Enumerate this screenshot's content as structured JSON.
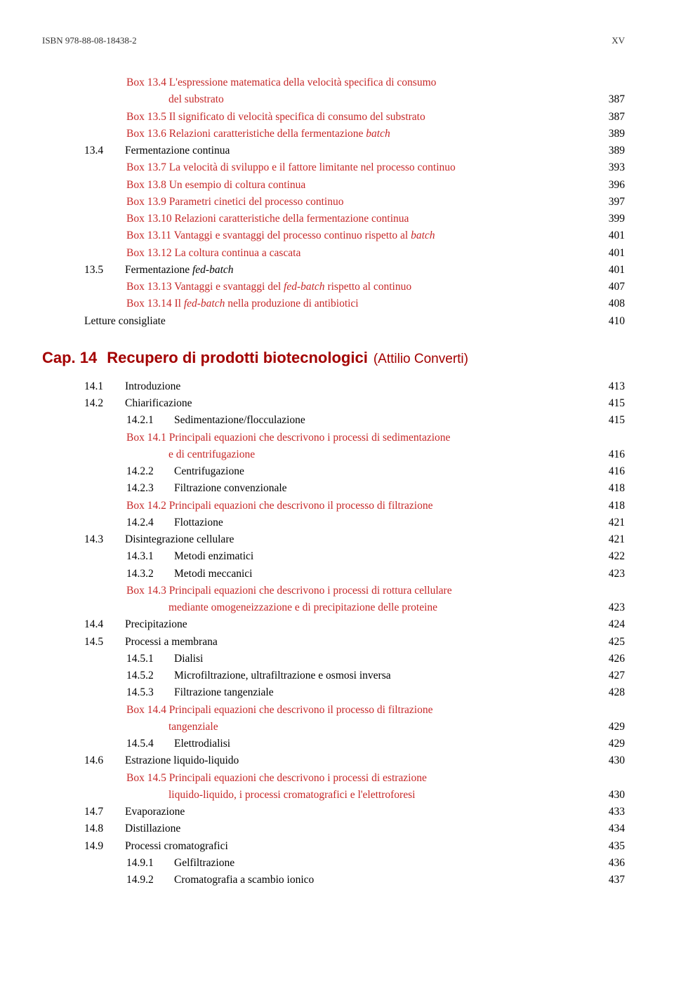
{
  "header": {
    "isbn": "ISBN 978-88-08-18438-2",
    "roman": "XV"
  },
  "toc13": [
    {
      "type": "box-cont",
      "label": "Box 13.4 L'espressione matematica della velocità specifica di consumo",
      "page": ""
    },
    {
      "type": "box-cont-2",
      "label": "del substrato",
      "page": "387"
    },
    {
      "type": "box",
      "label": "Box 13.5 Il significato di velocità specifica di consumo del substrato",
      "page": "387"
    },
    {
      "type": "box",
      "label": "Box 13.6 Relazioni caratteristiche della fermentazione",
      "italic": "batch",
      "page": "389"
    },
    {
      "type": "sec",
      "num": "13.4",
      "label": "Fermentazione continua",
      "page": "389"
    },
    {
      "type": "box",
      "label": "Box 13.7 La velocità di sviluppo e il fattore limitante nel processo continuo",
      "page": "393"
    },
    {
      "type": "box",
      "label": "Box 13.8 Un esempio di coltura continua",
      "page": "396"
    },
    {
      "type": "box",
      "label": "Box 13.9 Parametri cinetici del processo continuo",
      "page": "397"
    },
    {
      "type": "box",
      "label": "Box 13.10 Relazioni caratteristiche della fermentazione continua",
      "page": "399"
    },
    {
      "type": "box",
      "label": "Box 13.11 Vantaggi e svantaggi del processo continuo rispetto al",
      "italic": "batch",
      "page": "401"
    },
    {
      "type": "box",
      "label": "Box 13.12 La coltura continua a cascata",
      "page": "401"
    },
    {
      "type": "sec",
      "num": "13.5",
      "label_pre": "Fermentazione",
      "italic": "fed-batch",
      "page": "401"
    },
    {
      "type": "box",
      "label": "Box 13.13 Vantaggi e svantaggi del",
      "italic": "fed-batch",
      "label_post": "rispetto al continuo",
      "page": "407"
    },
    {
      "type": "box",
      "label": "Box 13.14 Il",
      "italic": "fed-batch",
      "label_post": "nella produzione di antibiotici",
      "page": "408"
    },
    {
      "type": "sec",
      "num": "",
      "label": "Letture consigliate",
      "page": "410",
      "letture": true
    }
  ],
  "chapter14": {
    "prefix": "Cap. 14",
    "title": "Recupero di prodotti biotecnologici",
    "author": "(Attilio Converti)"
  },
  "toc14": [
    {
      "type": "sec",
      "num": "14.1",
      "label": "Introduzione",
      "page": "413"
    },
    {
      "type": "sec",
      "num": "14.2",
      "label": "Chiarificazione",
      "page": "415"
    },
    {
      "type": "sub",
      "num": "14.2.1",
      "label": "Sedimentazione/flocculazione",
      "page": "415"
    },
    {
      "type": "box",
      "label": "Box 14.1 Principali equazioni che descrivono i processi di sedimentazione",
      "page": ""
    },
    {
      "type": "box-cont-2",
      "label": "e di centrifugazione",
      "page": "416"
    },
    {
      "type": "sub",
      "num": "14.2.2",
      "label": "Centrifugazione",
      "page": "416"
    },
    {
      "type": "sub",
      "num": "14.2.3",
      "label": "Filtrazione convenzionale",
      "page": "418"
    },
    {
      "type": "box",
      "label": "Box 14.2 Principali equazioni che descrivono il processo di filtrazione",
      "page": "418"
    },
    {
      "type": "sub",
      "num": "14.2.4",
      "label": "Flottazione",
      "page": "421"
    },
    {
      "type": "sec",
      "num": "14.3",
      "label": "Disintegrazione cellulare",
      "page": "421"
    },
    {
      "type": "sub",
      "num": "14.3.1",
      "label": "Metodi enzimatici",
      "page": "422"
    },
    {
      "type": "sub",
      "num": "14.3.2",
      "label": "Metodi meccanici",
      "page": "423"
    },
    {
      "type": "box",
      "label": "Box 14.3 Principali equazioni che descrivono i processi di rottura cellulare",
      "page": ""
    },
    {
      "type": "box-cont-2",
      "label": "mediante omogeneizzazione e di precipitazione delle proteine",
      "page": "423"
    },
    {
      "type": "sec",
      "num": "14.4",
      "label": "Precipitazione",
      "page": "424"
    },
    {
      "type": "sec",
      "num": "14.5",
      "label": "Processi a membrana",
      "page": "425"
    },
    {
      "type": "sub",
      "num": "14.5.1",
      "label": "Dialisi",
      "page": "426"
    },
    {
      "type": "sub",
      "num": "14.5.2",
      "label": "Microfiltrazione, ultrafiltrazione e osmosi inversa",
      "page": "427"
    },
    {
      "type": "sub",
      "num": "14.5.3",
      "label": "Filtrazione tangenziale",
      "page": "428"
    },
    {
      "type": "box",
      "label": "Box 14.4 Principali equazioni che descrivono il processo di filtrazione",
      "page": ""
    },
    {
      "type": "box-cont-2",
      "label": "tangenziale",
      "page": "429"
    },
    {
      "type": "sub",
      "num": "14.5.4",
      "label": "Elettrodialisi",
      "page": "429"
    },
    {
      "type": "sec",
      "num": "14.6",
      "label": "Estrazione liquido-liquido",
      "page": "430"
    },
    {
      "type": "box",
      "label": "Box 14.5 Principali equazioni che descrivono i processi di estrazione",
      "page": ""
    },
    {
      "type": "box-cont-2",
      "label": "liquido-liquido, i processi cromatografici e l'elettroforesi",
      "page": "430"
    },
    {
      "type": "sec",
      "num": "14.7",
      "label": "Evaporazione",
      "page": "433"
    },
    {
      "type": "sec",
      "num": "14.8",
      "label": "Distillazione",
      "page": "434"
    },
    {
      "type": "sec",
      "num": "14.9",
      "label": "Processi cromatografici",
      "page": "435"
    },
    {
      "type": "sub",
      "num": "14.9.1",
      "label": "Gelfiltrazione",
      "page": "436"
    },
    {
      "type": "sub",
      "num": "14.9.2",
      "label": "Cromatografia a scambio ionico",
      "page": "437"
    }
  ]
}
